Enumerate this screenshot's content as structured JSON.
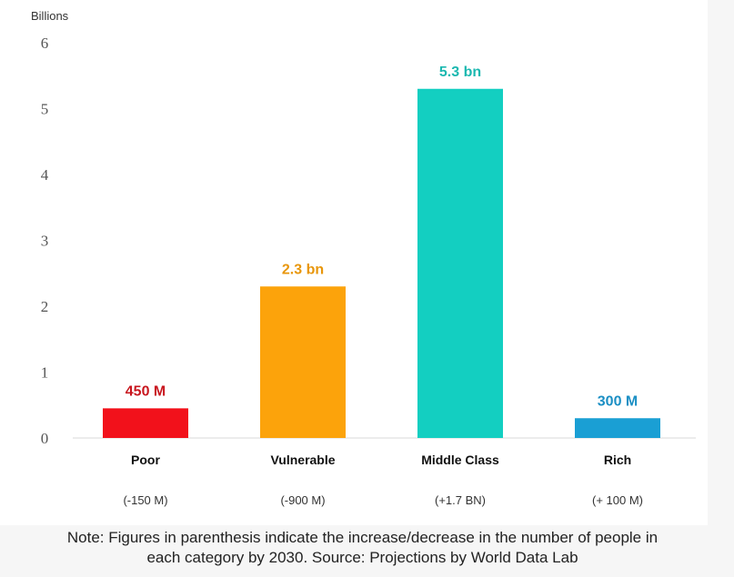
{
  "chart_data": {
    "type": "bar",
    "ylabel": "Billions",
    "ylim": [
      0,
      6
    ],
    "yticks": [
      "0",
      "1",
      "2",
      "3",
      "4",
      "5",
      "6"
    ],
    "categories": [
      "Poor",
      "Vulnerable",
      "Middle Class",
      "Rich"
    ],
    "values": [
      0.45,
      2.3,
      5.3,
      0.3
    ],
    "value_labels": [
      "450 M",
      "2.3 bn",
      "5.3 bn",
      "300 M"
    ],
    "changes": [
      "(-150 M)",
      "(-900 M)",
      "(+1.7 BN)",
      "(+ 100 M)"
    ],
    "colors": [
      "#f2111b",
      "#fca30b",
      "#13cfc1",
      "#1a9fd4"
    ],
    "label_colors": [
      "#c8161e",
      "#e8960a",
      "#1bb8b0",
      "#1b8fc4"
    ],
    "grid": false,
    "legend": "none"
  },
  "note": {
    "line1": "Note: Figures in parenthesis indicate the increase/decrease in the number of people in",
    "line2": "each category by 2030. Source: Projections by World Data Lab"
  }
}
